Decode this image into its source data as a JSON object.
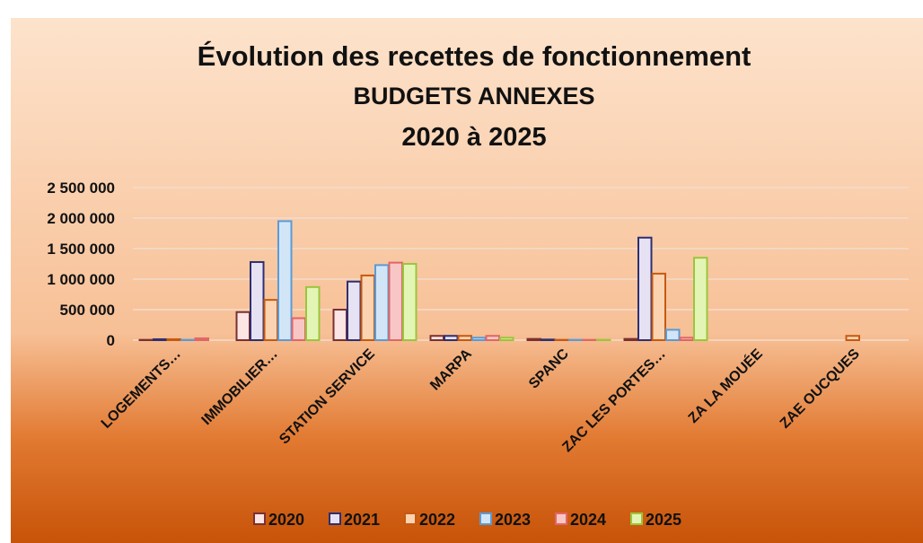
{
  "chart_data": {
    "type": "bar",
    "title": [
      "Évolution des recettes de fonctionnement",
      "BUDGETS  ANNEXES",
      "2020 à 2025"
    ],
    "categories": [
      "LOGEMENTS…",
      "IMMOBILIER…",
      "STATION SERVICE",
      "MARPA",
      "SPANC",
      "ZAC LES PORTES…",
      "ZA LA MOUÉE",
      "ZAE OUCQUES"
    ],
    "series": [
      {
        "name": "2020",
        "color": "#fbe5e5",
        "border": "#7b3030",
        "values": [
          5000,
          460000,
          500000,
          70000,
          20000,
          20000,
          0,
          0
        ]
      },
      {
        "name": "2021",
        "color": "#e6e2f3",
        "border": "#2f2f6f",
        "values": [
          15000,
          1280000,
          960000,
          70000,
          10000,
          1680000,
          0,
          0
        ]
      },
      {
        "name": "2022",
        "color": "#fbd3b0",
        "border": "#c55a11",
        "values": [
          15000,
          660000,
          1060000,
          70000,
          5000,
          1090000,
          0,
          70000
        ]
      },
      {
        "name": "2023",
        "color": "#d2e5f7",
        "border": "#5b9bd5",
        "values": [
          5000,
          1950000,
          1230000,
          40000,
          5000,
          170000,
          0,
          0
        ]
      },
      {
        "name": "2024",
        "color": "#f9c6c6",
        "border": "#e06666",
        "values": [
          30000,
          360000,
          1270000,
          70000,
          5000,
          40000,
          0,
          0
        ]
      },
      {
        "name": "2025",
        "color": "#e3f5b5",
        "border": "#9bc53d",
        "values": [
          0,
          870000,
          1250000,
          40000,
          5000,
          1350000,
          0,
          0
        ]
      }
    ],
    "ylim": [
      0,
      2500000
    ],
    "yticks": [
      0,
      {
        "value": 500000,
        "label": "500 000"
      },
      {
        "value": 1000000,
        "label": "1 000 000"
      },
      {
        "value": 1500000,
        "label": "1 500 000"
      },
      {
        "value": 2000000,
        "label": "2 000 000"
      },
      {
        "value": 2500000,
        "label": "2 500 000"
      }
    ],
    "grid": true
  }
}
